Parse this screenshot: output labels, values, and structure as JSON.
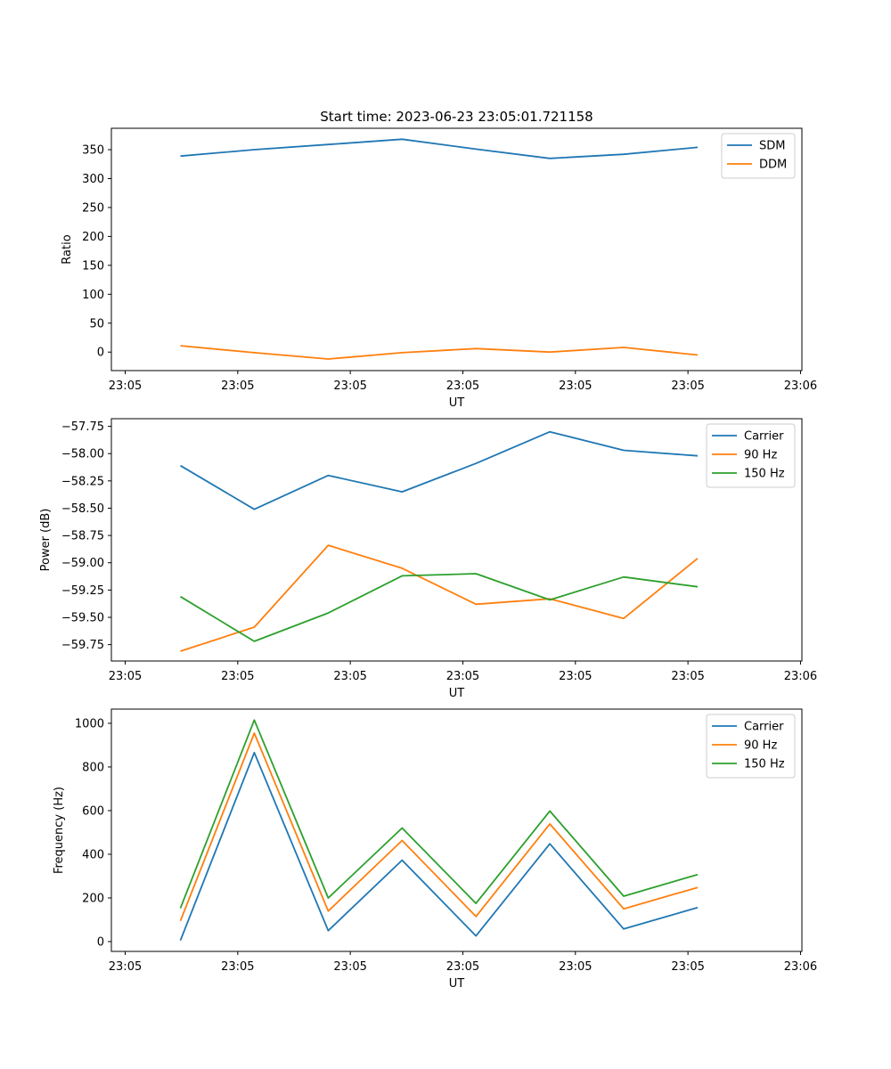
{
  "figure": {
    "title": "Start time: 2023-06-23 23:05:01.721158"
  },
  "chart_data": [
    {
      "type": "line",
      "title": "Start time: 2023-06-23 23:05:01.721158",
      "xlabel": "UT",
      "ylabel": "Ratio",
      "x_tick_labels": [
        "23:05",
        "23:05",
        "23:05",
        "23:05",
        "23:05",
        "23:05",
        "23:06"
      ],
      "y_ticks": [
        0,
        50,
        100,
        150,
        200,
        250,
        300,
        350
      ],
      "ylim": [
        -32,
        387
      ],
      "legend_position": "top-right",
      "series": [
        {
          "name": "SDM",
          "color": "#1f77b4",
          "values": [
            339,
            350,
            359,
            368,
            351,
            335,
            342,
            354
          ]
        },
        {
          "name": "DDM",
          "color": "#ff7f0e",
          "values": [
            11,
            -1,
            -12,
            -1,
            6,
            0,
            8,
            -5
          ]
        }
      ]
    },
    {
      "type": "line",
      "xlabel": "UT",
      "ylabel": "Power (dB)",
      "x_tick_labels": [
        "23:05",
        "23:05",
        "23:05",
        "23:05",
        "23:05",
        "23:05",
        "23:06"
      ],
      "y_ticks": [
        -59.75,
        -59.5,
        -59.25,
        -59.0,
        -58.75,
        -58.5,
        -58.25,
        -58.0,
        -57.75
      ],
      "y_tick_labels": [
        "−59.75",
        "−59.50",
        "−59.25",
        "−59.00",
        "−58.75",
        "−58.50",
        "−58.25",
        "−58.00",
        "−57.75"
      ],
      "ylim": [
        -59.9,
        -57.68
      ],
      "legend_position": "top-right",
      "series": [
        {
          "name": "Carrier",
          "color": "#1f77b4",
          "values": [
            -58.11,
            -58.51,
            -58.2,
            -58.35,
            -58.09,
            -57.8,
            -57.97,
            -58.02
          ]
        },
        {
          "name": "90 Hz",
          "color": "#ff7f0e",
          "values": [
            -59.81,
            -59.59,
            -58.84,
            -59.05,
            -59.38,
            -59.33,
            -59.51,
            -58.96
          ]
        },
        {
          "name": "150 Hz",
          "color": "#2ca02c",
          "values": [
            -59.31,
            -59.72,
            -59.46,
            -59.12,
            -59.1,
            -59.34,
            -59.13,
            -59.22
          ]
        }
      ]
    },
    {
      "type": "line",
      "xlabel": "UT",
      "ylabel": "Frequency (Hz)",
      "x_tick_labels": [
        "23:05",
        "23:05",
        "23:05",
        "23:05",
        "23:05",
        "23:05",
        "23:06"
      ],
      "y_ticks": [
        0,
        200,
        400,
        600,
        800,
        1000
      ],
      "ylim": [
        -45,
        1065
      ],
      "legend_position": "top-right",
      "series": [
        {
          "name": "Carrier",
          "color": "#1f77b4",
          "values": [
            5,
            866,
            50,
            373,
            26,
            448,
            58,
            156
          ]
        },
        {
          "name": "90 Hz",
          "color": "#ff7f0e",
          "values": [
            95,
            955,
            140,
            463,
            115,
            539,
            150,
            248
          ]
        },
        {
          "name": "150 Hz",
          "color": "#2ca02c",
          "values": [
            153,
            1015,
            200,
            520,
            175,
            598,
            208,
            307
          ]
        }
      ]
    }
  ]
}
